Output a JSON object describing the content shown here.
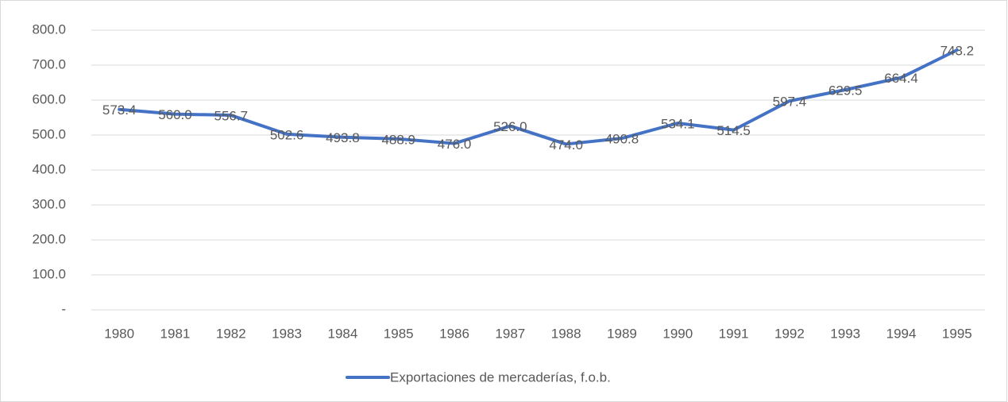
{
  "chart_data": {
    "type": "line",
    "categories": [
      "1980",
      "1981",
      "1982",
      "1983",
      "1984",
      "1985",
      "1986",
      "1987",
      "1988",
      "1989",
      "1990",
      "1991",
      "1992",
      "1993",
      "1994",
      "1995"
    ],
    "series": [
      {
        "name": "Exportaciones de mercaderías, f.o.b.",
        "color": "#4472c4",
        "values": [
          573.4,
          560.0,
          556.7,
          502.6,
          493.8,
          488.9,
          476.0,
          526.0,
          474.0,
          490.8,
          534.1,
          514.5,
          597.4,
          629.5,
          664.4,
          743.2
        ],
        "value_labels": [
          "573.4",
          "560.0",
          "556.7",
          "502.6",
          "493.8",
          "488.9",
          "476.0",
          "526.0",
          "474.0",
          "490.8",
          "534.1",
          "514.5",
          "597.4",
          "629.5",
          "664.4",
          "743.2"
        ]
      }
    ],
    "ylim": [
      0,
      800
    ],
    "yticks": [
      {
        "value": 0,
        "label": "-"
      },
      {
        "value": 100,
        "label": "100.0"
      },
      {
        "value": 200,
        "label": "200.0"
      },
      {
        "value": 300,
        "label": "300.0"
      },
      {
        "value": 400,
        "label": "400.0"
      },
      {
        "value": 500,
        "label": "500.0"
      },
      {
        "value": 600,
        "label": "600.0"
      },
      {
        "value": 700,
        "label": "700.0"
      },
      {
        "value": 800,
        "label": "800.0"
      }
    ],
    "grid": true,
    "legend": "bottom"
  }
}
